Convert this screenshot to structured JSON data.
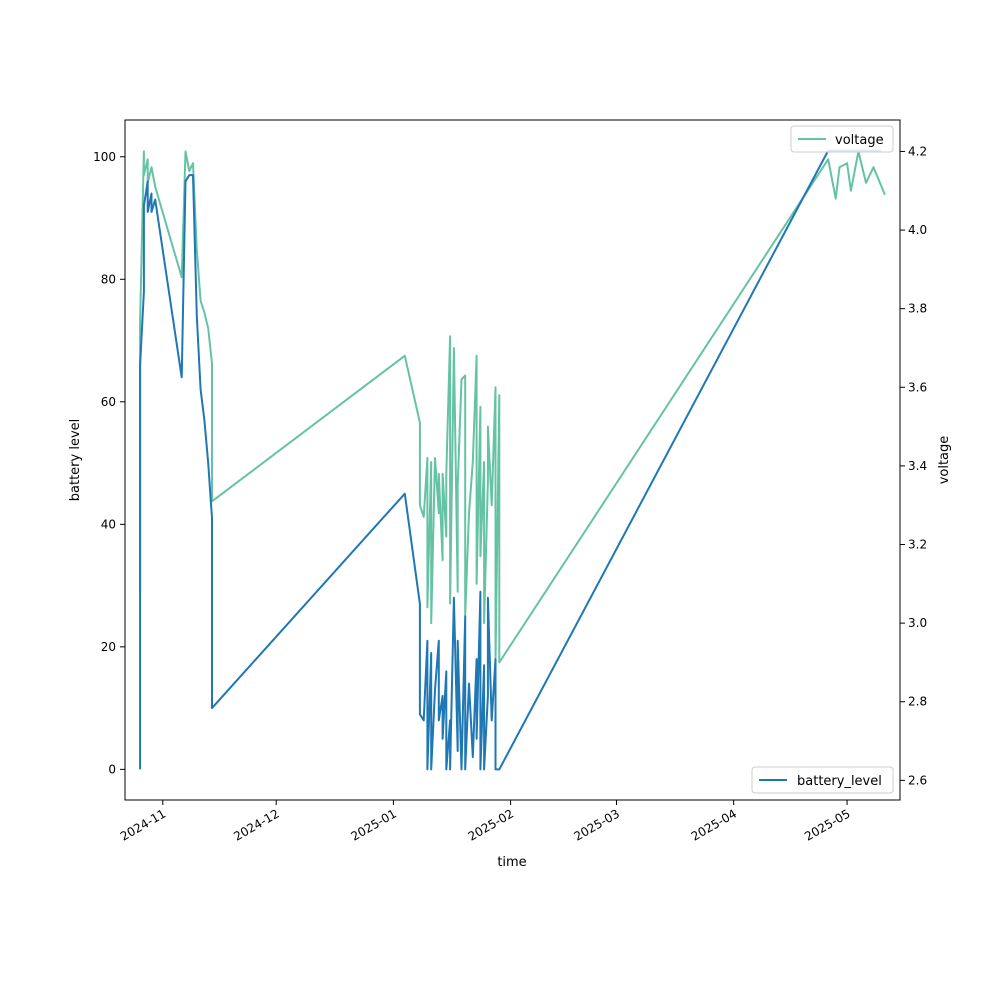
{
  "chart_data": {
    "type": "line",
    "xlabel": "time",
    "ylabel_left": "battery level",
    "ylabel_right": "voltage",
    "x_ticks": [
      "2024-11",
      "2024-12",
      "2025-01",
      "2025-02",
      "2025-03",
      "2025-04",
      "2025-05"
    ],
    "y_left_ticks": [
      0,
      20,
      40,
      60,
      80,
      100
    ],
    "y_right_ticks": [
      "2.6",
      "2.8",
      "3.0",
      "3.2",
      "3.4",
      "3.6",
      "3.8",
      "4.0",
      "4.2"
    ],
    "xlim": [
      "2024-10-22",
      "2025-05-15"
    ],
    "ylim_left": [
      -5,
      106
    ],
    "ylim_right": [
      2.55,
      4.28
    ],
    "legend_left": "lower-right",
    "legend_right": "upper-right",
    "grid": false,
    "colors": {
      "battery_level": "#1f77b4",
      "voltage": "#66c2a5"
    },
    "series": [
      {
        "name": "battery_level",
        "axis": "left",
        "points": [
          [
            "2024-10-26",
            0
          ],
          [
            "2024-10-26",
            28
          ],
          [
            "2024-10-26",
            66
          ],
          [
            "2024-10-27",
            78
          ],
          [
            "2024-10-27",
            92
          ],
          [
            "2024-10-28",
            96
          ],
          [
            "2024-10-28",
            91
          ],
          [
            "2024-10-29",
            94
          ],
          [
            "2024-10-29",
            91
          ],
          [
            "2024-10-30",
            93
          ],
          [
            "2024-11-06",
            64
          ],
          [
            "2024-11-07",
            96
          ],
          [
            "2024-11-08",
            97
          ],
          [
            "2024-11-09",
            97
          ],
          [
            "2024-11-10",
            74
          ],
          [
            "2024-11-11",
            62
          ],
          [
            "2024-11-12",
            57
          ],
          [
            "2024-11-13",
            50
          ],
          [
            "2024-11-14",
            41
          ],
          [
            "2024-11-14",
            10
          ],
          [
            "2025-01-04",
            45
          ],
          [
            "2025-01-08",
            27
          ],
          [
            "2025-01-08",
            9
          ],
          [
            "2025-01-09",
            8
          ],
          [
            "2025-01-10",
            21
          ],
          [
            "2025-01-10",
            0
          ],
          [
            "2025-01-11",
            19
          ],
          [
            "2025-01-11",
            0
          ],
          [
            "2025-01-12",
            13
          ],
          [
            "2025-01-13",
            21
          ],
          [
            "2025-01-13",
            8
          ],
          [
            "2025-01-14",
            12
          ],
          [
            "2025-01-14",
            5
          ],
          [
            "2025-01-15",
            16
          ],
          [
            "2025-01-15",
            0
          ],
          [
            "2025-01-16",
            8
          ],
          [
            "2025-01-16",
            0
          ],
          [
            "2025-01-17",
            28
          ],
          [
            "2025-01-18",
            3
          ],
          [
            "2025-01-18",
            21
          ],
          [
            "2025-01-19",
            0
          ],
          [
            "2025-01-20",
            25
          ],
          [
            "2025-01-20",
            0
          ],
          [
            "2025-01-21",
            14
          ],
          [
            "2025-01-22",
            2
          ],
          [
            "2025-01-23",
            18
          ],
          [
            "2025-01-23",
            5
          ],
          [
            "2025-01-24",
            29
          ],
          [
            "2025-01-24",
            0
          ],
          [
            "2025-01-25",
            17
          ],
          [
            "2025-01-25",
            0
          ],
          [
            "2025-01-26",
            12
          ],
          [
            "2025-01-26",
            28
          ],
          [
            "2025-01-27",
            8
          ],
          [
            "2025-01-28",
            18
          ],
          [
            "2025-01-28",
            0
          ],
          [
            "2025-01-29",
            0
          ],
          [
            "2025-04-26",
            101
          ],
          [
            "2025-04-30",
            101
          ],
          [
            "2025-05-10",
            101
          ]
        ]
      },
      {
        "name": "voltage",
        "axis": "right",
        "points": [
          [
            "2024-10-26",
            3.08
          ],
          [
            "2024-10-26",
            3.77
          ],
          [
            "2024-10-27",
            4.2
          ],
          [
            "2024-10-27",
            4.14
          ],
          [
            "2024-10-28",
            4.18
          ],
          [
            "2024-10-28",
            4.12
          ],
          [
            "2024-10-29",
            4.16
          ],
          [
            "2024-10-30",
            4.11
          ],
          [
            "2024-11-06",
            3.88
          ],
          [
            "2024-11-07",
            4.2
          ],
          [
            "2024-11-08",
            4.15
          ],
          [
            "2024-11-09",
            4.17
          ],
          [
            "2024-11-10",
            3.95
          ],
          [
            "2024-11-11",
            3.82
          ],
          [
            "2024-11-12",
            3.79
          ],
          [
            "2024-11-13",
            3.75
          ],
          [
            "2024-11-14",
            3.66
          ],
          [
            "2024-11-14",
            3.31
          ],
          [
            "2025-01-04",
            3.68
          ],
          [
            "2025-01-08",
            3.51
          ],
          [
            "2025-01-08",
            3.3
          ],
          [
            "2025-01-09",
            3.27
          ],
          [
            "2025-01-10",
            3.42
          ],
          [
            "2025-01-10",
            3.04
          ],
          [
            "2025-01-11",
            3.41
          ],
          [
            "2025-01-11",
            3.0
          ],
          [
            "2025-01-12",
            3.42
          ],
          [
            "2025-01-13",
            3.28
          ],
          [
            "2025-01-13",
            3.38
          ],
          [
            "2025-01-14",
            3.16
          ],
          [
            "2025-01-14",
            3.38
          ],
          [
            "2025-01-15",
            3.22
          ],
          [
            "2025-01-15",
            3.38
          ],
          [
            "2025-01-16",
            3.73
          ],
          [
            "2025-01-16",
            3.05
          ],
          [
            "2025-01-17",
            3.7
          ],
          [
            "2025-01-18",
            3.08
          ],
          [
            "2025-01-18",
            3.35
          ],
          [
            "2025-01-19",
            3.62
          ],
          [
            "2025-01-20",
            3.63
          ],
          [
            "2025-01-20",
            3.02
          ],
          [
            "2025-01-21",
            3.28
          ],
          [
            "2025-01-22",
            3.41
          ],
          [
            "2025-01-23",
            3.68
          ],
          [
            "2025-01-23",
            3.1
          ],
          [
            "2025-01-24",
            3.55
          ],
          [
            "2025-01-24",
            3.17
          ],
          [
            "2025-01-25",
            3.41
          ],
          [
            "2025-01-25",
            3.0
          ],
          [
            "2025-01-26",
            3.36
          ],
          [
            "2025-01-26",
            3.5
          ],
          [
            "2025-01-27",
            3.3
          ],
          [
            "2025-01-28",
            3.6
          ],
          [
            "2025-01-28",
            2.9
          ],
          [
            "2025-01-29",
            3.58
          ],
          [
            "2025-01-29",
            2.9
          ],
          [
            "2025-04-26",
            4.18
          ],
          [
            "2025-04-28",
            4.08
          ],
          [
            "2025-04-29",
            4.16
          ],
          [
            "2025-05-01",
            4.17
          ],
          [
            "2025-05-02",
            4.1
          ],
          [
            "2025-05-04",
            4.2
          ],
          [
            "2025-05-06",
            4.12
          ],
          [
            "2025-05-08",
            4.16
          ],
          [
            "2025-05-11",
            4.09
          ]
        ]
      }
    ]
  }
}
